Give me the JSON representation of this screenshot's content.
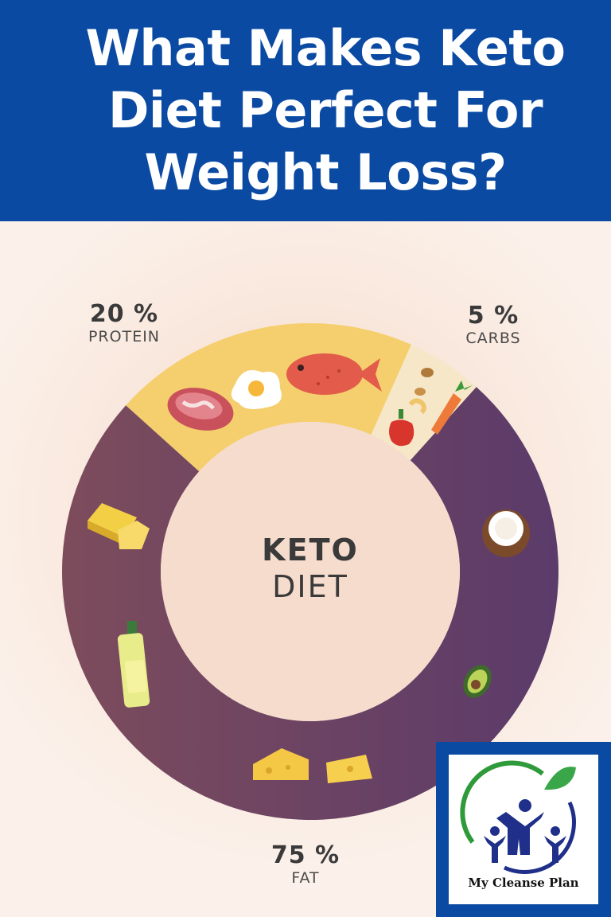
{
  "header": {
    "title": "What Makes Keto Diet Perfect For Weight Loss?"
  },
  "center": {
    "line1": "KETO",
    "line2": "DIET"
  },
  "logo": {
    "text": "My Cleanse Plan"
  },
  "colors": {
    "header_bg": "#0a4aa3",
    "protein": "#f5cf6e",
    "carbs": "#f6e7c8",
    "fat": "#5e3c68",
    "fat_light": "#7b4d5f"
  },
  "chart_data": {
    "type": "pie",
    "categories": [
      "PROTEIN",
      "CARBS",
      "FAT"
    ],
    "values": [
      20,
      5,
      75
    ],
    "value_labels": [
      "20 %",
      "5 %",
      "75 %"
    ],
    "title": "KETO DIET"
  },
  "icons": {
    "protein": [
      "steak-icon",
      "egg-icon",
      "fish-icon"
    ],
    "carbs": [
      "nuts-icon",
      "pepper-icon",
      "carrot-icon"
    ],
    "fat": [
      "butter-icon",
      "coconut-icon",
      "olive-oil-icon",
      "avocado-icon",
      "cheese-icon"
    ]
  }
}
